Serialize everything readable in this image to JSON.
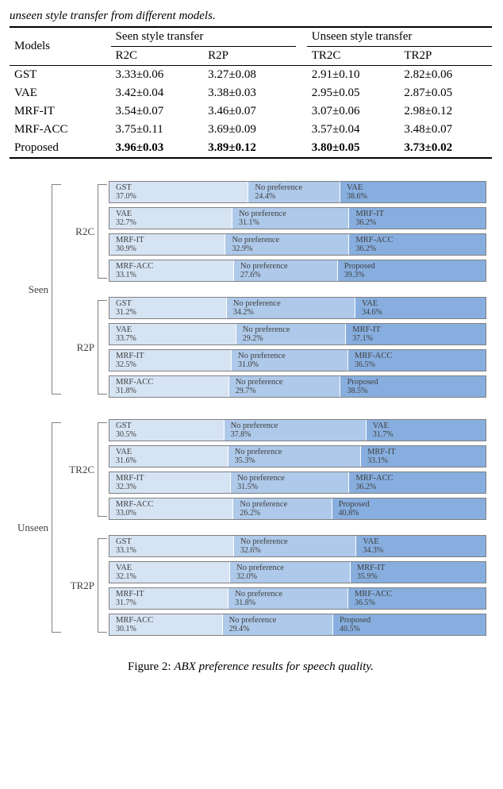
{
  "caption_top": "unseen style transfer from different models.",
  "table": {
    "header": {
      "models": "Models",
      "seen": "Seen style transfer",
      "unseen": "Unseen style transfer",
      "r2c": "R2C",
      "r2p": "R2P",
      "tr2c": "TR2C",
      "tr2p": "TR2P"
    },
    "rows": [
      {
        "model": "GST",
        "r2c": "3.33±0.06",
        "r2p": "3.27±0.08",
        "tr2c": "2.91±0.10",
        "tr2p": "2.82±0.06",
        "bold": false
      },
      {
        "model": "VAE",
        "r2c": "3.42±0.04",
        "r2p": "3.38±0.03",
        "tr2c": "2.95±0.05",
        "tr2p": "2.87±0.05",
        "bold": false
      },
      {
        "model": "MRF-IT",
        "r2c": "3.54±0.07",
        "r2p": "3.46±0.07",
        "tr2c": "3.07±0.06",
        "tr2p": "2.98±0.12",
        "bold": false
      },
      {
        "model": "MRF-ACC",
        "r2c": "3.75±0.11",
        "r2p": "3.69±0.09",
        "tr2c": "3.57±0.04",
        "tr2p": "3.48±0.07",
        "bold": false
      },
      {
        "model": "Proposed",
        "r2c": "3.96±0.03",
        "r2p": "3.89±0.12",
        "tr2c": "3.80±0.05",
        "tr2p": "3.73±0.02",
        "bold": true
      }
    ]
  },
  "figure": {
    "colors": {
      "c1": "#d6e3f3",
      "c2": "#aec9e9",
      "c3": "#87aede"
    },
    "outer": [
      {
        "label": "Seen"
      },
      {
        "label": "Unseen"
      }
    ],
    "groups": [
      {
        "outer": "Seen",
        "label": "R2C",
        "rows": [
          {
            "l": "GST",
            "lp": "37.0%",
            "m": "No preference",
            "mp": "24.4%",
            "r": "VAE",
            "rp": "38.6%",
            "lv": 37.0,
            "mv": 24.4,
            "rv": 38.6
          },
          {
            "l": "VAE",
            "lp": "32.7%",
            "m": "No preference",
            "mp": "31.1%",
            "r": "MRF-IT",
            "rp": "36.2%",
            "lv": 32.7,
            "mv": 31.1,
            "rv": 36.2
          },
          {
            "l": "MRF-IT",
            "lp": "30.9%",
            "m": "No preference",
            "mp": "32.9%",
            "r": "MRF-ACC",
            "rp": "36.2%",
            "lv": 30.9,
            "mv": 32.9,
            "rv": 36.2
          },
          {
            "l": "MRF-ACC",
            "lp": "33.1%",
            "m": "No preference",
            "mp": "27.6%",
            "r": "Proposed",
            "rp": "39.3%",
            "lv": 33.1,
            "mv": 27.6,
            "rv": 39.3
          }
        ]
      },
      {
        "outer": "Seen",
        "label": "R2P",
        "rows": [
          {
            "l": "GST",
            "lp": "31.2%",
            "m": "No preference",
            "mp": "34.2%",
            "r": "VAE",
            "rp": "34.6%",
            "lv": 31.2,
            "mv": 34.2,
            "rv": 34.6
          },
          {
            "l": "VAE",
            "lp": "33.7%",
            "m": "No preference",
            "mp": "29.2%",
            "r": "MRF-IT",
            "rp": "37.1%",
            "lv": 33.7,
            "mv": 29.2,
            "rv": 37.1
          },
          {
            "l": "MRF-IT",
            "lp": "32.5%",
            "m": "No preference",
            "mp": "31.0%",
            "r": "MRF-ACC",
            "rp": "36.5%",
            "lv": 32.5,
            "mv": 31.0,
            "rv": 36.5
          },
          {
            "l": "MRF-ACC",
            "lp": "31.8%",
            "m": "No preference",
            "mp": "29.7%",
            "r": "Proposed",
            "rp": "38.5%",
            "lv": 31.8,
            "mv": 29.7,
            "rv": 38.5
          }
        ]
      },
      {
        "outer": "Unseen",
        "label": "TR2C",
        "rows": [
          {
            "l": "GST",
            "lp": "30.5%",
            "m": "No preference",
            "mp": "37.8%",
            "r": "VAE",
            "rp": "31.7%",
            "lv": 30.5,
            "mv": 37.8,
            "rv": 31.7
          },
          {
            "l": "VAE",
            "lp": "31.6%",
            "m": "No preference",
            "mp": "35.3%",
            "r": "MRF-IT",
            "rp": "33.1%",
            "lv": 31.6,
            "mv": 35.3,
            "rv": 33.1
          },
          {
            "l": "MRF-IT",
            "lp": "32.3%",
            "m": "No preference",
            "mp": "31.5%",
            "r": "MRF-ACC",
            "rp": "36.2%",
            "lv": 32.3,
            "mv": 31.5,
            "rv": 36.2
          },
          {
            "l": "MRF-ACC",
            "lp": "33.0%",
            "m": "No preference",
            "mp": "26.2%",
            "r": "Proposed",
            "rp": "40.8%",
            "lv": 33.0,
            "mv": 26.2,
            "rv": 40.8
          }
        ]
      },
      {
        "outer": "Unseen",
        "label": "TR2P",
        "rows": [
          {
            "l": "GST",
            "lp": "33.1%",
            "m": "No preference",
            "mp": "32.6%",
            "r": "VAE",
            "rp": "34.3%",
            "lv": 33.1,
            "mv": 32.6,
            "rv": 34.3
          },
          {
            "l": "VAE",
            "lp": "32.1%",
            "m": "No preference",
            "mp": "32.0%",
            "r": "MRF-IT",
            "rp": "35.9%",
            "lv": 32.1,
            "mv": 32.0,
            "rv": 35.9
          },
          {
            "l": "MRF-IT",
            "lp": "31.7%",
            "m": "No preference",
            "mp": "31.8%",
            "r": "MRF-ACC",
            "rp": "36.5%",
            "lv": 31.7,
            "mv": 31.8,
            "rv": 36.5
          },
          {
            "l": "MRF-ACC",
            "lp": "30.1%",
            "m": "No preference",
            "mp": "29.4%",
            "r": "Proposed",
            "rp": "40.5%",
            "lv": 30.1,
            "mv": 29.4,
            "rv": 40.5
          }
        ]
      }
    ],
    "caption_prefix": "Figure 2: ",
    "caption_text": "ABX preference results for speech quality."
  }
}
